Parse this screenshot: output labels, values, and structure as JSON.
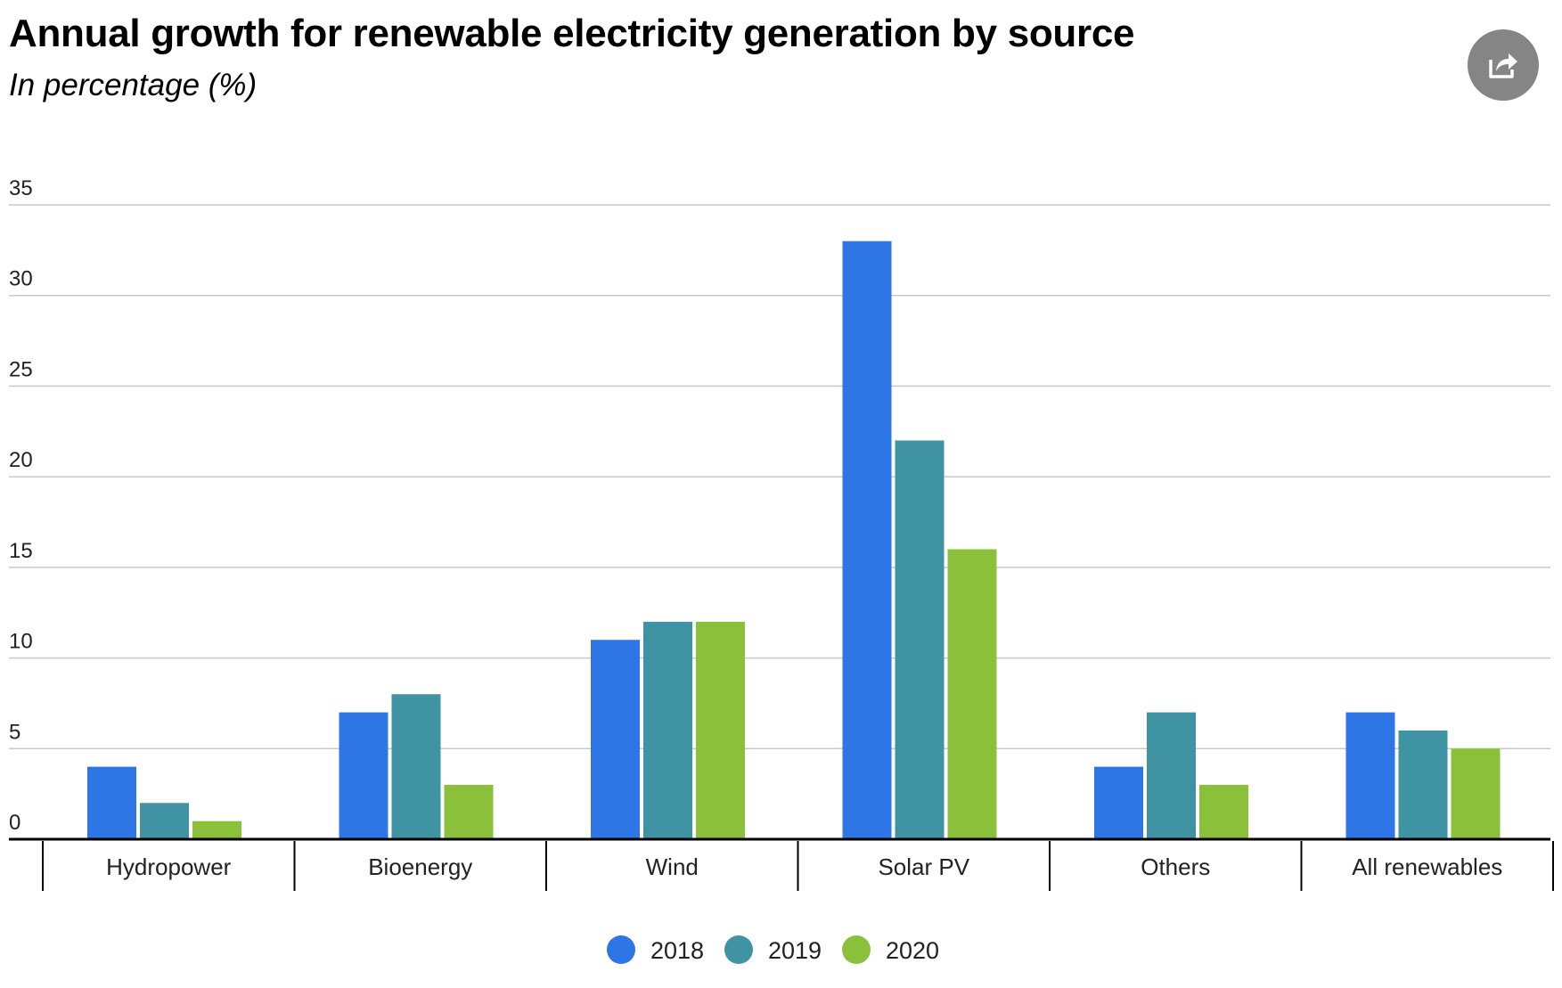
{
  "header": {
    "title": "Annual growth for renewable electricity generation by source",
    "subtitle": "In percentage (%)"
  },
  "share_button": {
    "icon": "share-icon"
  },
  "chart_data": {
    "type": "bar",
    "title": "Annual growth for renewable electricity generation by source",
    "subtitle": "In percentage (%)",
    "xlabel": "",
    "ylabel": "",
    "ylim": [
      0,
      35
    ],
    "yticks": [
      0,
      5,
      10,
      15,
      20,
      25,
      30,
      35
    ],
    "grid": true,
    "legend_position": "bottom-center",
    "categories": [
      "Hydropower",
      "Bioenergy",
      "Wind",
      "Solar PV",
      "Others",
      "All renewables"
    ],
    "series": [
      {
        "name": "2018",
        "color": "#2e75e6",
        "values": [
          4,
          7,
          11,
          33,
          4,
          7
        ]
      },
      {
        "name": "2019",
        "color": "#3f93a2",
        "values": [
          2,
          8,
          12,
          22,
          7,
          6
        ]
      },
      {
        "name": "2020",
        "color": "#8bc13a",
        "values": [
          1,
          3,
          12,
          16,
          3,
          5
        ]
      }
    ]
  }
}
